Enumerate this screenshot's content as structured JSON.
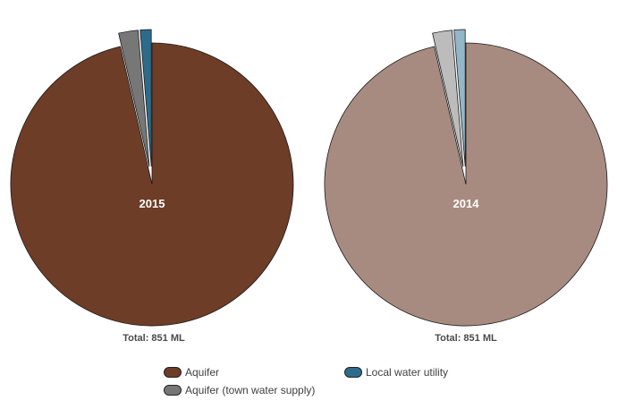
{
  "chart_data": [
    {
      "type": "pie",
      "year_label": "2015",
      "total_label": "Total: 851 ML",
      "slices": [
        {
          "name": "Aquifer",
          "value": 96.4,
          "color": "#6e3d27",
          "exploded": false
        },
        {
          "name": "Aquifer (town water supply)",
          "value": 2.3,
          "color": "#777777",
          "exploded": true
        },
        {
          "name": "Local water utility",
          "value": 1.3,
          "color": "#2e6b8a",
          "exploded": true
        }
      ]
    },
    {
      "type": "pie",
      "year_label": "2014",
      "total_label": "Total: 851 ML",
      "slices": [
        {
          "name": "Aquifer",
          "value": 96.4,
          "color": "#a88b80",
          "exploded": false
        },
        {
          "name": "Aquifer (town water supply)",
          "value": 2.3,
          "color": "#bcbcbc",
          "exploded": true
        },
        {
          "name": "Local water utility",
          "value": 1.3,
          "color": "#94b7c8",
          "exploded": true
        }
      ]
    }
  ],
  "legend": [
    {
      "label": "Aquifer",
      "color": "#6e3d27"
    },
    {
      "label": "Local water utility",
      "color": "#2e6b8a"
    },
    {
      "label": "Aquifer (town water supply)",
      "color": "#777777"
    }
  ]
}
